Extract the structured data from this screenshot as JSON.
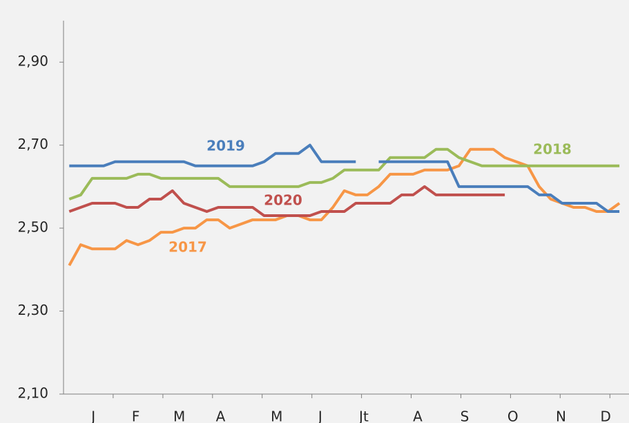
{
  "chart_data": {
    "type": "line",
    "x": [
      0.5,
      1.5,
      2.5,
      3.5,
      4.5,
      5.5,
      6.5,
      7.5,
      8.5,
      9.5,
      10.5,
      11.5,
      12.5,
      13.5,
      14.5,
      15.5,
      16.5,
      17.5,
      18.5,
      19.5,
      20.5,
      21.5,
      22.5,
      23.5,
      24.5,
      25.5,
      26.5,
      27.5,
      28.5,
      29.5,
      30.5,
      31.5,
      32.5,
      33.5,
      34.5,
      35.5,
      36.5,
      37.5,
      38.5,
      39.5,
      40.5,
      41.5,
      42.5,
      43.5,
      44.5,
      45.5,
      46.5,
      47.5,
      48.5
    ],
    "series": [
      {
        "name": "2017",
        "color": "#f79646",
        "values": [
          2.41,
          2.46,
          2.45,
          2.45,
          2.45,
          2.47,
          2.46,
          2.47,
          2.49,
          2.49,
          2.5,
          2.5,
          2.52,
          2.52,
          2.5,
          2.51,
          2.52,
          2.52,
          2.52,
          2.53,
          2.53,
          2.52,
          2.52,
          2.55,
          2.59,
          2.58,
          2.58,
          2.6,
          2.63,
          2.63,
          2.63,
          2.64,
          2.64,
          2.64,
          2.65,
          2.69,
          2.69,
          2.69,
          2.67,
          2.66,
          2.65,
          2.6,
          2.57,
          2.56,
          2.55,
          2.55,
          2.54,
          2.54,
          2.56
        ]
      },
      {
        "name": "2018",
        "color": "#9bbb59",
        "values": [
          2.57,
          2.58,
          2.62,
          2.62,
          2.62,
          2.62,
          2.63,
          2.63,
          2.62,
          2.62,
          2.62,
          2.62,
          2.62,
          2.62,
          2.6,
          2.6,
          2.6,
          2.6,
          2.6,
          2.6,
          2.6,
          2.61,
          2.61,
          2.62,
          2.64,
          2.64,
          2.64,
          2.64,
          2.67,
          2.67,
          2.67,
          2.67,
          2.69,
          2.69,
          2.67,
          2.66,
          2.65,
          2.65,
          2.65,
          2.65,
          2.65,
          2.65,
          2.65,
          2.65,
          2.65,
          2.65,
          2.65,
          2.65,
          2.65
        ]
      },
      {
        "name": "2019",
        "color": "#4a7ebb",
        "values": [
          2.65,
          2.65,
          2.65,
          2.65,
          2.66,
          2.66,
          2.66,
          2.66,
          2.66,
          2.66,
          2.66,
          2.65,
          2.65,
          2.65,
          2.65,
          2.65,
          2.65,
          2.66,
          2.68,
          2.68,
          2.68,
          2.7,
          2.66,
          2.66,
          2.66,
          2.66,
          null,
          2.66,
          2.66,
          2.66,
          2.66,
          2.66,
          2.66,
          2.66,
          2.6,
          2.6,
          2.6,
          2.6,
          2.6,
          2.6,
          2.6,
          2.58,
          2.58,
          2.56,
          2.56,
          2.56,
          2.56,
          2.54,
          2.54
        ]
      },
      {
        "name": "2020",
        "color": "#c0504d",
        "values": [
          2.54,
          2.55,
          2.56,
          2.56,
          2.56,
          2.55,
          2.55,
          2.57,
          2.57,
          2.59,
          2.56,
          2.55,
          2.54,
          2.55,
          2.55,
          2.55,
          2.55,
          2.53,
          2.53,
          2.53,
          2.53,
          2.53,
          2.54,
          2.54,
          2.54,
          2.56,
          2.56,
          2.56,
          2.56,
          2.58,
          2.58,
          2.6,
          2.58,
          2.58,
          2.58,
          2.58,
          2.58,
          2.58,
          2.58,
          null,
          null,
          null,
          null,
          null,
          null,
          null,
          null,
          null,
          null
        ]
      }
    ],
    "xlim": [
      0,
      49.3
    ],
    "xticks": [
      {
        "value": 2.6,
        "label": "J"
      },
      {
        "value": 6.3,
        "label": "F"
      },
      {
        "value": 10.1,
        "label": "M"
      },
      {
        "value": 13.7,
        "label": "A"
      },
      {
        "value": 18.6,
        "label": "M"
      },
      {
        "value": 22.4,
        "label": "J"
      },
      {
        "value": 26.2,
        "label": "Jt"
      },
      {
        "value": 30.9,
        "label": "A"
      },
      {
        "value": 35.0,
        "label": "S"
      },
      {
        "value": 39.2,
        "label": "O"
      },
      {
        "value": 43.4,
        "label": "N"
      },
      {
        "value": 47.3,
        "label": "D"
      }
    ],
    "x_minor_ticks": [
      4.33,
      8.67,
      13,
      17.33,
      21.67,
      26,
      30.33,
      34.67,
      39,
      43.33,
      47.67
    ],
    "ylim": [
      2.1,
      3.0
    ],
    "yticks": [
      {
        "value": 2.1,
        "label": "2,10"
      },
      {
        "value": 2.3,
        "label": "2,30"
      },
      {
        "value": 2.5,
        "label": "2,50"
      },
      {
        "value": 2.7,
        "label": "2,70"
      },
      {
        "value": 2.9,
        "label": "2,90"
      }
    ],
    "grid": false
  }
}
